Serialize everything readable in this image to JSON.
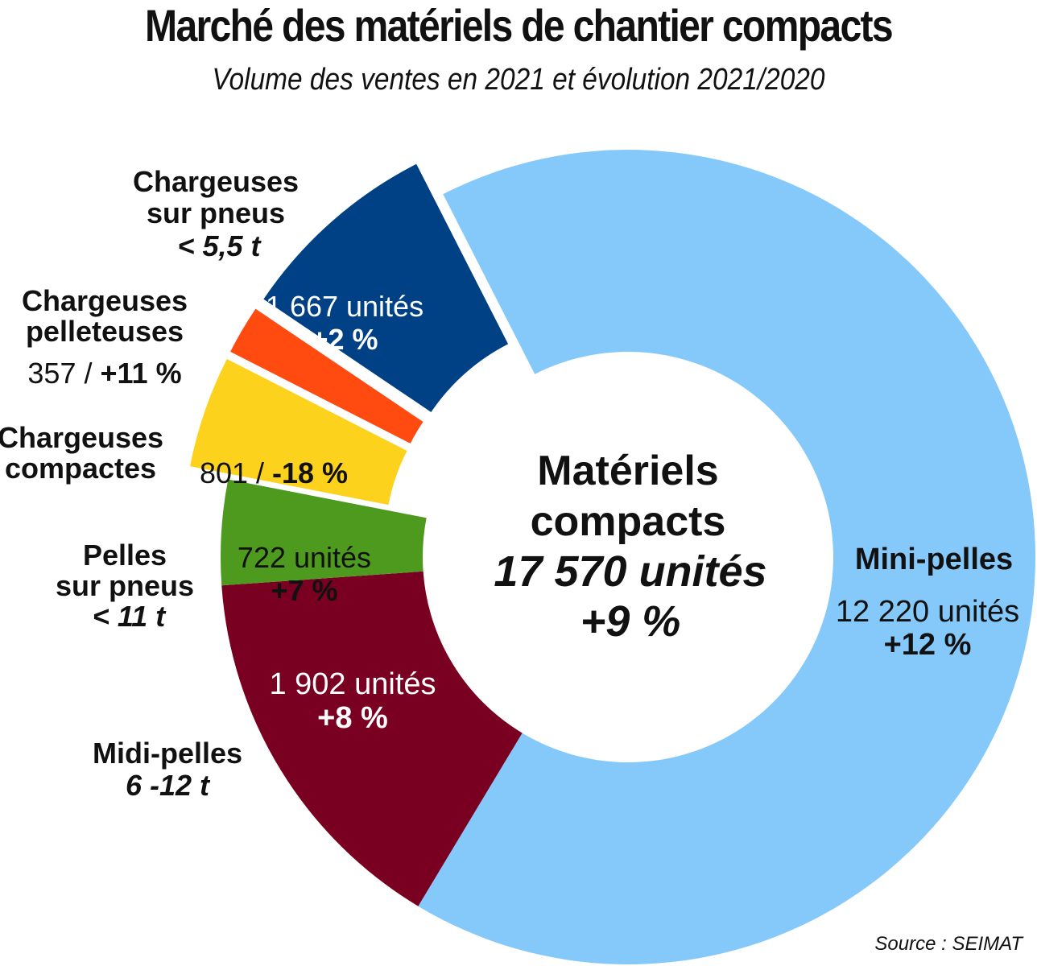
{
  "title": "Marché des matériels de chantier compacts",
  "subtitle": "Volume des ventes en 2021 et évolution 2021/2020",
  "source": "Source : SEIMAT",
  "center": {
    "line1": "Matériels",
    "line2": "compacts",
    "total": "17 570 unités",
    "change": "+9 %"
  },
  "chart_data": {
    "type": "pie",
    "donut": true,
    "total_units": 17570,
    "total_change_pct": 9,
    "slices": [
      {
        "category": "Mini-pelles",
        "units": 12220,
        "change_pct": 12,
        "value_text": "12 220 unités",
        "change_text": "+12 %",
        "color": "#85c8fa"
      },
      {
        "category": "Midi-pelles",
        "qualifier": "6 -12 t",
        "units": 1902,
        "change_pct": 8,
        "value_text": "1 902 unités",
        "change_text": "+8 %",
        "color": "#7a0022"
      },
      {
        "category": "Pelles sur pneus",
        "qualifier": "< 11 t",
        "units": 722,
        "change_pct": 7,
        "value_text": "722 unités",
        "change_text": "+7 %",
        "color": "#4e9a1e"
      },
      {
        "category": "Chargeuses compactes",
        "units": 801,
        "change_pct": -18,
        "value_text": "801 / -18 %",
        "color": "#fdd21c"
      },
      {
        "category": "Chargeuses pelleteuses",
        "units": 357,
        "change_pct": 11,
        "value_text": "357 / +11 %",
        "color": "#ff4a10"
      },
      {
        "category": "Chargeuses sur pneus",
        "qualifier": "< 5,5 t",
        "units": 1667,
        "change_pct": 2,
        "value_text": "1 667 unités",
        "change_text": "+2 %",
        "color": "#004185"
      }
    ],
    "labels": {
      "mini": {
        "name": "Mini-pelles"
      },
      "midi": {
        "name": "Midi-pelles",
        "qualifier": "6 -12 t"
      },
      "pneus_pelles": {
        "name1": "Pelles",
        "name2": "sur pneus",
        "qualifier": "< 11 t"
      },
      "compactes": {
        "name1": "Chargeuses",
        "name2": "compactes"
      },
      "pelleteuses": {
        "name1": "Chargeuses",
        "name2": "pelleteuses",
        "value_a": "357 / ",
        "value_b": "+11 %"
      },
      "sur_pneus": {
        "name1": "Chargeuses",
        "name2": "sur pneus",
        "qualifier": "< 5,5 t"
      },
      "compactes_value_a": "801 / ",
      "compactes_value_b": "-18 %"
    }
  }
}
